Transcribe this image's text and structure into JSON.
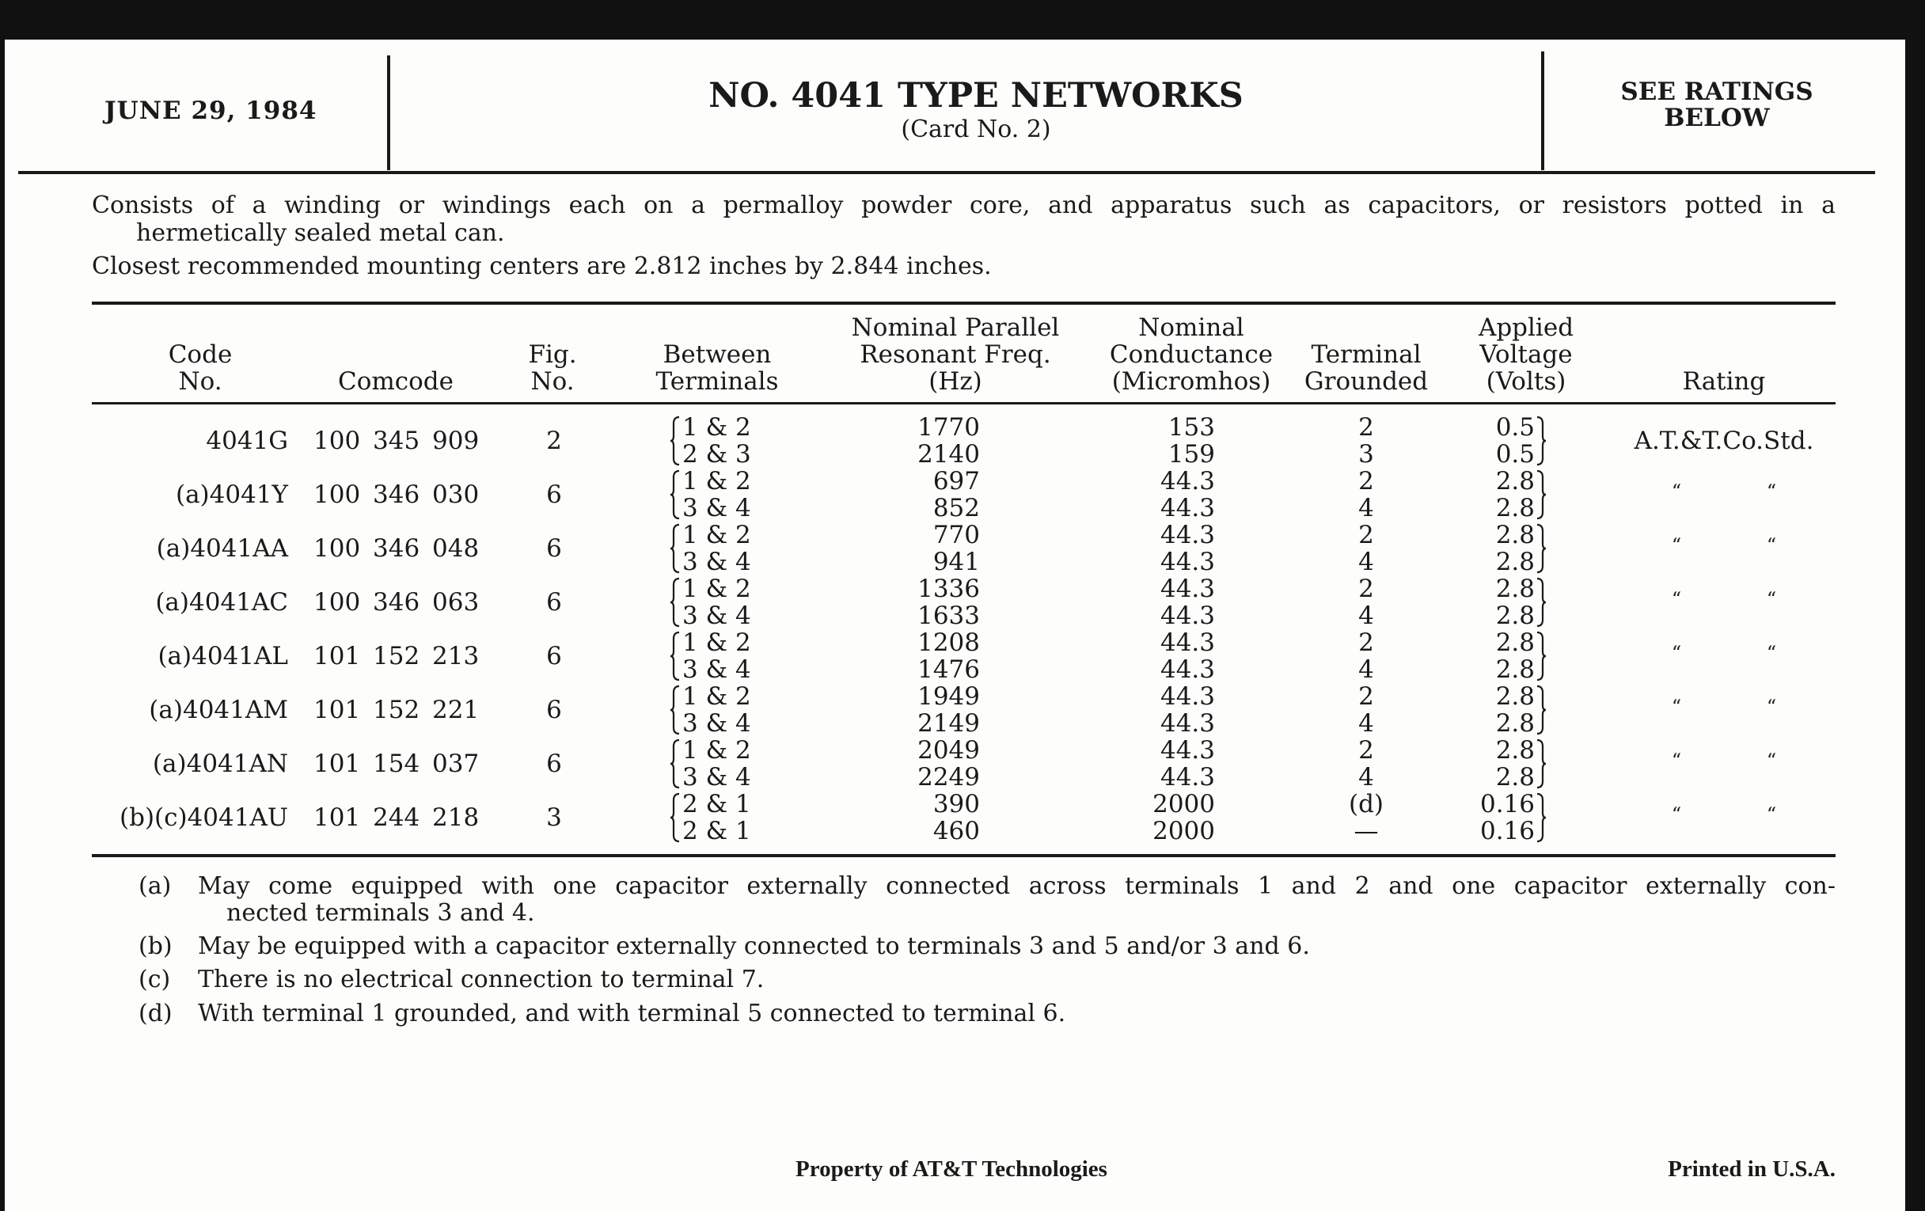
{
  "header": {
    "date": "JUNE 29, 1984",
    "title": "NO. 4041 TYPE NETWORKS",
    "subtitle": "(Card No. 2)",
    "ratings_note_line1": "SEE RATINGS",
    "ratings_note_line2": "BELOW"
  },
  "intro": {
    "line1": "Consists of a winding or windings each on a permalloy powder core, and apparatus such as capacitors, or resistors potted in a",
    "line2": "hermetically sealed metal can.",
    "line3": "Closest recommended mounting centers are 2.812 inches by 2.844 inches."
  },
  "table": {
    "columns": [
      {
        "lines": [
          "Code",
          "No."
        ]
      },
      {
        "lines": [
          "Comcode"
        ]
      },
      {
        "lines": [
          "Fig.",
          "No."
        ]
      },
      {
        "lines": [
          "Between",
          "Terminals"
        ]
      },
      {
        "lines": [
          "Nominal Parallel",
          "Resonant Freq.",
          "(Hz)"
        ]
      },
      {
        "lines": [
          "Nominal",
          "Conductance",
          "(Micromhos)"
        ]
      },
      {
        "lines": [
          "Terminal",
          "Grounded"
        ]
      },
      {
        "lines": [
          "Applied",
          "Voltage",
          "(Volts)"
        ]
      },
      {
        "lines": [
          "Rating"
        ]
      }
    ],
    "rows": [
      {
        "code": "4041G",
        "comcode": "100 345 909",
        "fig": "2",
        "terminals": [
          "1 & 2",
          "2 & 3"
        ],
        "freq": [
          "1770",
          "2140"
        ],
        "conductance": [
          "153",
          "159"
        ],
        "grounded": [
          "2",
          "3"
        ],
        "voltage": [
          "0.5",
          "0.5"
        ],
        "rating": "A.T.&T.Co.Std."
      },
      {
        "code": "(a)4041Y",
        "comcode": "100 346 030",
        "fig": "6",
        "terminals": [
          "1 & 2",
          "3 & 4"
        ],
        "freq": [
          "697",
          "852"
        ],
        "conductance": [
          "44.3",
          "44.3"
        ],
        "grounded": [
          "2",
          "4"
        ],
        "voltage": [
          "2.8",
          "2.8"
        ],
        "rating": "“ “"
      },
      {
        "code": "(a)4041AA",
        "comcode": "100 346 048",
        "fig": "6",
        "terminals": [
          "1 & 2",
          "3 & 4"
        ],
        "freq": [
          "770",
          "941"
        ],
        "conductance": [
          "44.3",
          "44.3"
        ],
        "grounded": [
          "2",
          "4"
        ],
        "voltage": [
          "2.8",
          "2.8"
        ],
        "rating": "“ “"
      },
      {
        "code": "(a)4041AC",
        "comcode": "100 346 063",
        "fig": "6",
        "terminals": [
          "1 & 2",
          "3 & 4"
        ],
        "freq": [
          "1336",
          "1633"
        ],
        "conductance": [
          "44.3",
          "44.3"
        ],
        "grounded": [
          "2",
          "4"
        ],
        "voltage": [
          "2.8",
          "2.8"
        ],
        "rating": "“ “"
      },
      {
        "code": "(a)4041AL",
        "comcode": "101 152 213",
        "fig": "6",
        "terminals": [
          "1 & 2",
          "3 & 4"
        ],
        "freq": [
          "1208",
          "1476"
        ],
        "conductance": [
          "44.3",
          "44.3"
        ],
        "grounded": [
          "2",
          "4"
        ],
        "voltage": [
          "2.8",
          "2.8"
        ],
        "rating": "“ “"
      },
      {
        "code": "(a)4041AM",
        "comcode": "101 152 221",
        "fig": "6",
        "terminals": [
          "1 & 2",
          "3 & 4"
        ],
        "freq": [
          "1949",
          "2149"
        ],
        "conductance": [
          "44.3",
          "44.3"
        ],
        "grounded": [
          "2",
          "4"
        ],
        "voltage": [
          "2.8",
          "2.8"
        ],
        "rating": "“ “"
      },
      {
        "code": "(a)4041AN",
        "comcode": "101 154 037",
        "fig": "6",
        "terminals": [
          "1 & 2",
          "3 & 4"
        ],
        "freq": [
          "2049",
          "2249"
        ],
        "conductance": [
          "44.3",
          "44.3"
        ],
        "grounded": [
          "2",
          "4"
        ],
        "voltage": [
          "2.8",
          "2.8"
        ],
        "rating": "“ “"
      },
      {
        "code": "(b)(c)4041AU",
        "comcode": "101 244 218",
        "fig": "3",
        "terminals": [
          "2 & 1",
          "2 & 1"
        ],
        "freq": [
          "390",
          "460"
        ],
        "conductance": [
          "2000",
          "2000"
        ],
        "grounded": [
          "(d)",
          "—"
        ],
        "voltage": [
          "0.16",
          "0.16"
        ],
        "rating": "“ “"
      }
    ]
  },
  "footnotes": [
    {
      "label": "(a)",
      "lines": [
        "May come equipped with one capacitor externally connected across terminals 1 and 2 and one capacitor externally con-",
        "nected terminals 3 and 4."
      ]
    },
    {
      "label": "(b)",
      "lines": [
        "May be equipped with a capacitor externally connected to terminals 3 and 5 and/or 3 and 6."
      ]
    },
    {
      "label": "(c)",
      "lines": [
        "There is no electrical connection to terminal 7."
      ]
    },
    {
      "label": "(d)",
      "lines": [
        "With terminal 1 grounded, and with terminal 5 connected to terminal 6."
      ]
    }
  ],
  "footer": {
    "property": "Property of AT&T Technologies",
    "printed": "Printed in U.S.A."
  }
}
